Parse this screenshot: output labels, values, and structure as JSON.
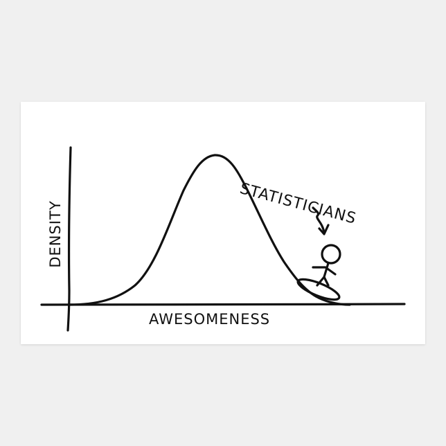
{
  "comic": {
    "y_axis_label": "DENSITY",
    "x_axis_label": "AWESOMENESS",
    "annotation": "STATISTICIANS",
    "line_color": "#111111",
    "sticker_color": "#ffffff",
    "background_color": "#f0f0f0",
    "icons": [
      "arrow-icon",
      "stick-figure-icon",
      "surfboard-icon"
    ]
  }
}
